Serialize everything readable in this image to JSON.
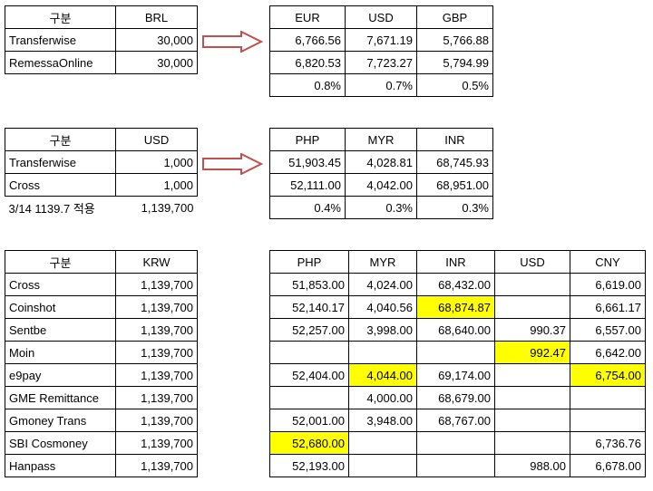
{
  "table1": {
    "headers": [
      "구분",
      "BRL"
    ],
    "rows": [
      [
        "Transferwise",
        "30,000"
      ],
      [
        "RemessaOnline",
        "30,000"
      ]
    ]
  },
  "table2": {
    "headers": [
      "EUR",
      "USD",
      "GBP"
    ],
    "rows": [
      [
        "6,766.56",
        "7,671.19",
        "5,766.88"
      ],
      [
        "6,820.53",
        "7,723.27",
        "5,794.99"
      ],
      [
        "0.8%",
        "0.7%",
        "0.5%"
      ]
    ]
  },
  "table3": {
    "headers": [
      "구분",
      "USD"
    ],
    "rows": [
      [
        "Transferwise",
        "1,000"
      ],
      [
        "Cross",
        "1,000"
      ]
    ],
    "note": [
      "3/14 1139.7 적용",
      "1,139,700"
    ]
  },
  "table4": {
    "headers": [
      "PHP",
      "MYR",
      "INR"
    ],
    "rows": [
      [
        "51,903.45",
        "4,028.81",
        "68,745.93"
      ],
      [
        "52,111.00",
        "4,042.00",
        "68,951.00"
      ],
      [
        "0.4%",
        "0.3%",
        "0.3%"
      ]
    ]
  },
  "table5": {
    "headers": [
      "구분",
      "KRW"
    ],
    "rows": [
      [
        "Cross",
        "1,139,700"
      ],
      [
        "Coinshot",
        "1,139,700"
      ],
      [
        "Sentbe",
        "1,139,700"
      ],
      [
        "Moin",
        "1,139,700"
      ],
      [
        "e9pay",
        "1,139,700"
      ],
      [
        "GME Remittance",
        "1,139,700"
      ],
      [
        "Gmoney Trans",
        "1,139,700"
      ],
      [
        "SBI Cosmoney",
        "1,139,700"
      ],
      [
        "Hanpass",
        "1,139,700"
      ]
    ]
  },
  "table6": {
    "headers": [
      "PHP",
      "MYR",
      "INR",
      "USD",
      "CNY"
    ],
    "rows": [
      [
        "51,853.00",
        "4,024.00",
        "68,432.00",
        "",
        "6,619.00"
      ],
      [
        "52,140.17",
        "4,040.56",
        "68,874.87",
        "",
        "6,661.17"
      ],
      [
        "52,257.00",
        "3,998.00",
        "68,640.00",
        "990.37",
        "6,557.00"
      ],
      [
        "",
        "",
        "",
        "992.47",
        "6,642.00"
      ],
      [
        "52,404.00",
        "4,044.00",
        "69,174.00",
        "",
        "6,754.00"
      ],
      [
        "",
        "4,000.00",
        "68,679.00",
        "",
        ""
      ],
      [
        "52,001.00",
        "3,948.00",
        "68,767.00",
        "",
        ""
      ],
      [
        "52,680.00",
        "",
        "",
        "",
        "6,736.76"
      ],
      [
        "52,193.00",
        "",
        "",
        "988.00",
        "6,678.00"
      ]
    ],
    "highlight_color": "#ffff00"
  },
  "arrow_color": "#c0504d"
}
